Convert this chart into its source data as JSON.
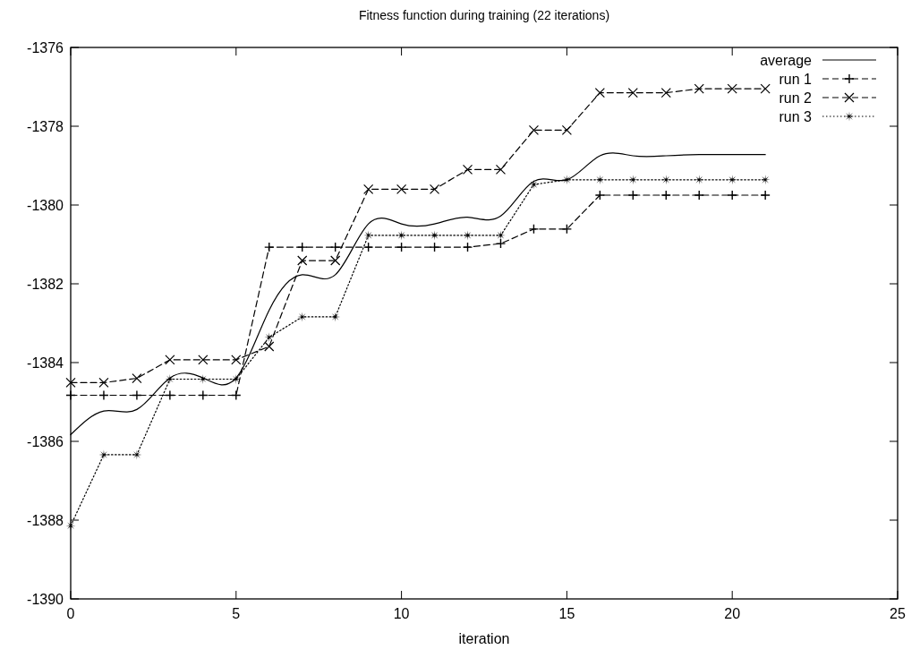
{
  "chart_data": {
    "type": "line",
    "title": "Fitness function during training (22 iterations)",
    "xlabel": "iteration",
    "x": [
      0,
      1,
      2,
      3,
      4,
      5,
      6,
      7,
      8,
      9,
      10,
      11,
      12,
      13,
      14,
      15,
      16,
      17,
      18,
      19,
      20,
      21
    ],
    "series": [
      {
        "name": "average",
        "color": "#000000",
        "marker": "none",
        "line_style": "solid",
        "values": [
          -1385.83,
          -1385.23,
          -1385.19,
          -1384.39,
          -1384.39,
          -1384.39,
          -1382.67,
          -1381.77,
          -1381.77,
          -1380.48,
          -1380.48,
          -1380.48,
          -1380.31,
          -1380.28,
          -1379.4,
          -1379.36,
          -1378.75,
          -1378.75,
          -1378.75,
          -1378.72,
          -1378.72,
          -1378.72
        ]
      },
      {
        "name": "run 1",
        "color": "#000000",
        "marker": "plus",
        "line_style": "dashed",
        "values": [
          -1384.83,
          -1384.83,
          -1384.83,
          -1384.83,
          -1384.83,
          -1384.83,
          -1381.07,
          -1381.07,
          -1381.07,
          -1381.07,
          -1381.07,
          -1381.07,
          -1381.07,
          -1380.98,
          -1380.61,
          -1380.61,
          -1379.75,
          -1379.75,
          -1379.75,
          -1379.75,
          -1379.75,
          -1379.75
        ]
      },
      {
        "name": "run 2",
        "color": "#000000",
        "marker": "cross",
        "line_style": "dashed",
        "values": [
          -1384.51,
          -1384.51,
          -1384.4,
          -1383.93,
          -1383.93,
          -1383.93,
          -1383.59,
          -1381.41,
          -1381.41,
          -1379.6,
          -1379.6,
          -1379.6,
          -1379.1,
          -1379.1,
          -1378.1,
          -1378.1,
          -1377.15,
          -1377.15,
          -1377.15,
          -1377.05,
          -1377.05,
          -1377.05
        ]
      },
      {
        "name": "run 3",
        "color": "#000000",
        "marker": "star",
        "line_style": "dotted",
        "values": [
          -1388.14,
          -1386.34,
          -1386.34,
          -1384.42,
          -1384.42,
          -1384.42,
          -1383.36,
          -1382.84,
          -1382.84,
          -1380.77,
          -1380.77,
          -1380.77,
          -1380.77,
          -1380.77,
          -1379.48,
          -1379.36,
          -1379.36,
          -1379.36,
          -1379.36,
          -1379.36,
          -1379.36,
          -1379.36
        ]
      }
    ],
    "xlim": [
      0,
      25
    ],
    "xticks": [
      0,
      5,
      10,
      15,
      20,
      25
    ],
    "ylim": [
      -1390,
      -1376
    ],
    "yticks": [
      -1390,
      -1388,
      -1386,
      -1384,
      -1382,
      -1380,
      -1378,
      -1376
    ],
    "grid": false,
    "legend": "top right"
  }
}
